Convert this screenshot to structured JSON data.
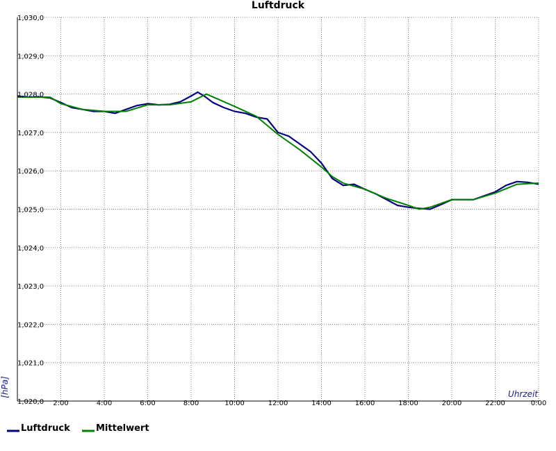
{
  "chart_data": {
    "type": "line",
    "title": "Luftdruck",
    "xlabel": "Uhrzeit",
    "ylabel": "[hPa]",
    "xlim": [
      0,
      24
    ],
    "ylim": [
      1020,
      1030
    ],
    "grid": true,
    "legend_position": "bottom-left",
    "x_ticks": [
      {
        "value": 2,
        "label": "2:00"
      },
      {
        "value": 4,
        "label": "4:00"
      },
      {
        "value": 6,
        "label": "6:00"
      },
      {
        "value": 8,
        "label": "8:00"
      },
      {
        "value": 10,
        "label": "10:00"
      },
      {
        "value": 12,
        "label": "12:00"
      },
      {
        "value": 14,
        "label": "14:00"
      },
      {
        "value": 16,
        "label": "16:00"
      },
      {
        "value": 18,
        "label": "18:00"
      },
      {
        "value": 20,
        "label": "20:00"
      },
      {
        "value": 22,
        "label": "22:00"
      },
      {
        "value": 24,
        "label": "0:00"
      }
    ],
    "y_ticks": [
      {
        "value": 1020,
        "label": "1,020,0"
      },
      {
        "value": 1021,
        "label": "1,021,0"
      },
      {
        "value": 1022,
        "label": "1,022,0"
      },
      {
        "value": 1023,
        "label": "1,023,0"
      },
      {
        "value": 1024,
        "label": "1,024,0"
      },
      {
        "value": 1025,
        "label": "1,025,0"
      },
      {
        "value": 1026,
        "label": "1,026,0"
      },
      {
        "value": 1027,
        "label": "1,027,0"
      },
      {
        "value": 1028,
        "label": "1,028,0"
      },
      {
        "value": 1029,
        "label": "1,029,0"
      },
      {
        "value": 1030,
        "label": "1,030,0"
      }
    ],
    "series": [
      {
        "name": "Luftdruck",
        "color": "#000080",
        "x": [
          0,
          0.5,
          1,
          1.5,
          2,
          2.5,
          3,
          3.5,
          4,
          4.5,
          5,
          5.5,
          6,
          6.5,
          7,
          7.5,
          8,
          8.3,
          8.6,
          9,
          9.5,
          10,
          10.5,
          11,
          11.5,
          12,
          12.5,
          13,
          13.5,
          14,
          14.5,
          15,
          15.5,
          16,
          16.5,
          17,
          17.5,
          18,
          18.5,
          19,
          19.5,
          20,
          20.5,
          21,
          21.5,
          22,
          22.5,
          23,
          23.5,
          24
        ],
        "y": [
          1027.95,
          1027.92,
          1027.93,
          1027.9,
          1027.78,
          1027.65,
          1027.6,
          1027.55,
          1027.55,
          1027.5,
          1027.6,
          1027.7,
          1027.75,
          1027.72,
          1027.73,
          1027.8,
          1027.95,
          1028.05,
          1027.95,
          1027.78,
          1027.65,
          1027.55,
          1027.5,
          1027.4,
          1027.35,
          1027.0,
          1026.9,
          1026.7,
          1026.5,
          1026.2,
          1025.8,
          1025.62,
          1025.65,
          1025.52,
          1025.4,
          1025.25,
          1025.1,
          1025.05,
          1025.02,
          1025.0,
          1025.12,
          1025.25,
          1025.25,
          1025.25,
          1025.35,
          1025.45,
          1025.62,
          1025.72,
          1025.7,
          1025.65
        ]
      },
      {
        "name": "Mittelwert",
        "color": "#008000",
        "x": [
          0,
          1,
          1.5,
          2,
          3,
          4,
          5,
          6,
          7,
          8,
          8.7,
          10,
          11,
          12,
          13,
          14,
          14.5,
          15,
          16,
          17,
          18,
          18.5,
          19,
          20,
          21,
          22,
          23,
          24
        ],
        "y": [
          1027.92,
          1027.92,
          1027.92,
          1027.75,
          1027.6,
          1027.55,
          1027.55,
          1027.72,
          1027.72,
          1027.8,
          1028.0,
          1027.68,
          1027.42,
          1026.95,
          1026.55,
          1026.1,
          1025.85,
          1025.68,
          1025.52,
          1025.28,
          1025.1,
          1025.0,
          1025.05,
          1025.25,
          1025.25,
          1025.42,
          1025.65,
          1025.68
        ]
      }
    ]
  }
}
